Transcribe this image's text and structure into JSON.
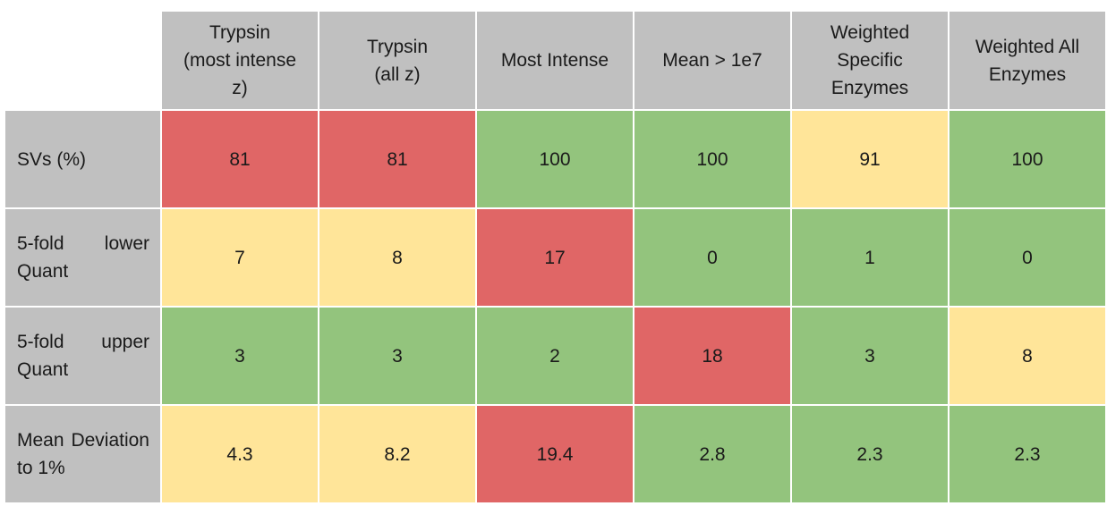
{
  "table": {
    "columns": [
      "Trypsin\n(most intense\nz)",
      "Trypsin\n(all z)",
      "Most Intense",
      "Mean > 1e7",
      "Weighted\nSpecific\nEnzymes",
      "Weighted All\nEnzymes"
    ],
    "rows": [
      {
        "label": "SVs (%)",
        "values": [
          "81",
          "81",
          "100",
          "100",
          "91",
          "100"
        ],
        "status": [
          "red",
          "red",
          "green",
          "green",
          "yellow",
          "green"
        ]
      },
      {
        "label": "5-fold lower Quant",
        "values": [
          "7",
          "8",
          "17",
          "0",
          "1",
          "0"
        ],
        "status": [
          "yellow",
          "yellow",
          "red",
          "green",
          "green",
          "green"
        ]
      },
      {
        "label": "5-fold upper Quant",
        "values": [
          "3",
          "3",
          "2",
          "18",
          "3",
          "8"
        ],
        "status": [
          "green",
          "green",
          "green",
          "red",
          "green",
          "yellow"
        ]
      },
      {
        "label": "Mean Deviation to 1%",
        "values": [
          "4.3",
          "8.2",
          "19.4",
          "2.8",
          "2.3",
          "2.3"
        ],
        "status": [
          "yellow",
          "yellow",
          "red",
          "green",
          "green",
          "green"
        ]
      }
    ],
    "status_colors": {
      "red": "#e06666",
      "green": "#93c47d",
      "yellow": "#ffe599",
      "header": "#c0c0c0"
    }
  }
}
